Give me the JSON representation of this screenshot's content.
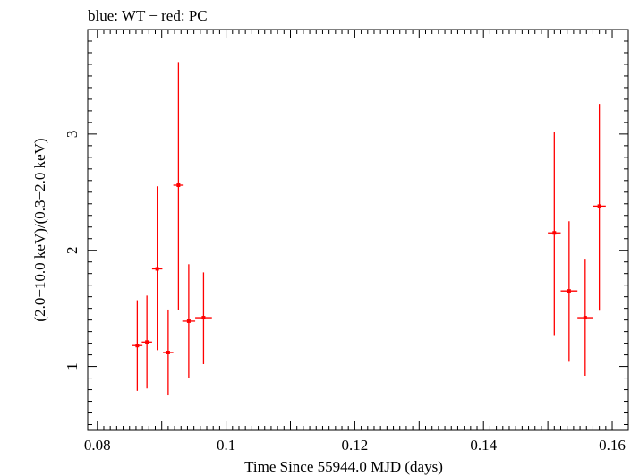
{
  "chart_data": {
    "type": "scatter",
    "title": "blue: WT − red: PC",
    "xlabel": "Time Since 55944.0 MJD (days)",
    "ylabel": "(2.0−10.0 keV)/(0.3−2.0 keV)",
    "xlim": [
      0.0785,
      0.1625
    ],
    "ylim": [
      0.45,
      3.9
    ],
    "x_ticks": [
      0.08,
      0.1,
      0.12,
      0.14,
      0.16
    ],
    "x_tick_labels": [
      "0.08",
      "0.1",
      "0.12",
      "0.14",
      "0.16"
    ],
    "y_ticks": [
      1,
      2,
      3
    ],
    "y_tick_labels": [
      "1",
      "2",
      "3"
    ],
    "grid": false,
    "series": [
      {
        "color": "#ff0000",
        "points": [
          {
            "x": 0.0862,
            "xerr": 0.0008,
            "y": 1.18,
            "ylo": 0.79,
            "yhi": 1.57
          },
          {
            "x": 0.0877,
            "xerr": 0.0008,
            "y": 1.21,
            "ylo": 0.81,
            "yhi": 1.61
          },
          {
            "x": 0.0893,
            "xerr": 0.0008,
            "y": 1.84,
            "ylo": 1.14,
            "yhi": 2.55
          },
          {
            "x": 0.091,
            "xerr": 0.0008,
            "y": 1.12,
            "ylo": 0.75,
            "yhi": 1.49
          },
          {
            "x": 0.0926,
            "xerr": 0.0008,
            "y": 2.56,
            "ylo": 1.49,
            "yhi": 3.62
          },
          {
            "x": 0.0942,
            "xerr": 0.001,
            "y": 1.39,
            "ylo": 0.9,
            "yhi": 1.88
          },
          {
            "x": 0.0965,
            "xerr": 0.0013,
            "y": 1.42,
            "ylo": 1.02,
            "yhi": 1.81
          },
          {
            "x": 0.151,
            "xerr": 0.001,
            "y": 2.15,
            "ylo": 1.27,
            "yhi": 3.02
          },
          {
            "x": 0.1533,
            "xerr": 0.0013,
            "y": 1.65,
            "ylo": 1.04,
            "yhi": 2.25
          },
          {
            "x": 0.1558,
            "xerr": 0.0012,
            "y": 1.42,
            "ylo": 0.92,
            "yhi": 1.92
          },
          {
            "x": 0.158,
            "xerr": 0.001,
            "y": 2.38,
            "ylo": 1.48,
            "yhi": 3.26
          }
        ]
      }
    ]
  }
}
